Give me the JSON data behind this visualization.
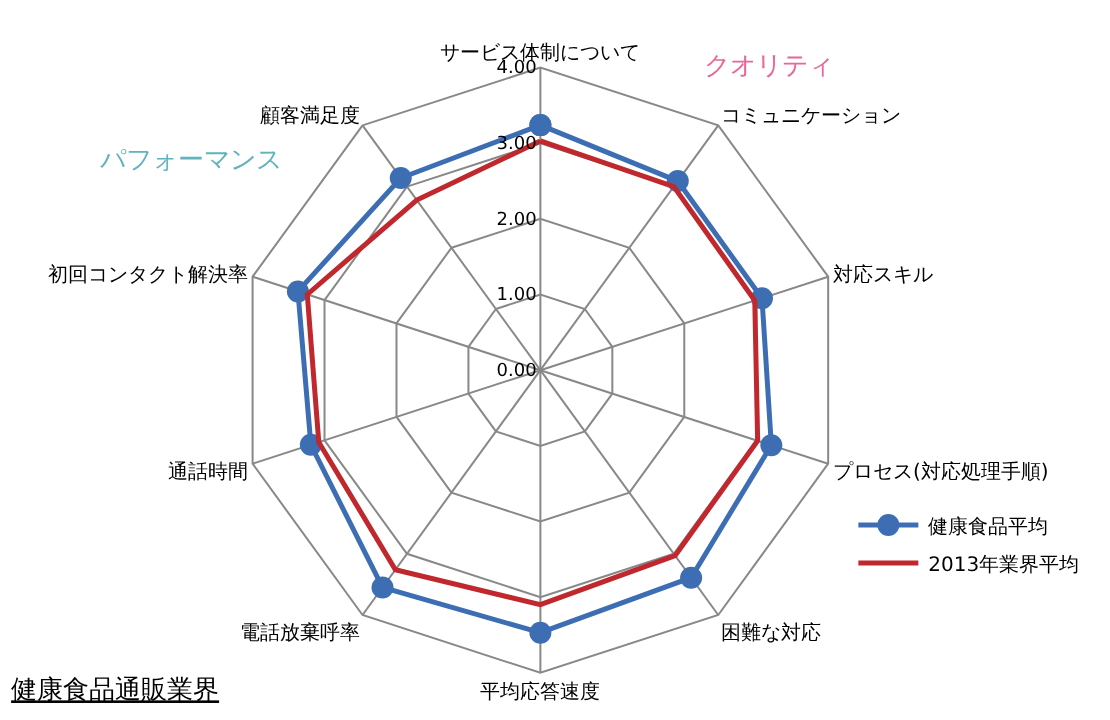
{
  "chart_data": {
    "type": "radar",
    "title": "健康食品通販業界",
    "categories": [
      "サービス体制について",
      "コミュニケーション",
      "対応スキル",
      "プロセス(対応処理手順)",
      "困難な対応",
      "平均応答速度",
      "電話放棄呼率",
      "通話時間",
      "初回コンタクト解決率",
      "顧客満足度"
    ],
    "series": [
      {
        "name": "健康食品平均",
        "color": "#3d6eb4",
        "marker": "circle",
        "values": [
          3.24,
          3.09,
          3.08,
          3.21,
          3.39,
          3.47,
          3.55,
          3.19,
          3.37,
          3.14
        ]
      },
      {
        "name": "2013年業界平均",
        "color": "#c0282d",
        "marker": "none",
        "values": [
          3.03,
          3.0,
          2.98,
          3.02,
          3.03,
          3.1,
          3.26,
          3.08,
          3.24,
          2.78
        ]
      }
    ],
    "ylim": [
      0,
      4
    ],
    "yticks": [
      {
        "value": 0,
        "label": "0.00"
      },
      {
        "value": 1,
        "label": "1.00"
      },
      {
        "value": 2,
        "label": "2.00"
      },
      {
        "value": 3,
        "label": "3.00"
      },
      {
        "value": 4,
        "label": "4.00"
      }
    ],
    "grid": true,
    "legend": "right",
    "annotations": [
      "クオリティ",
      "パフォーマンス"
    ]
  }
}
